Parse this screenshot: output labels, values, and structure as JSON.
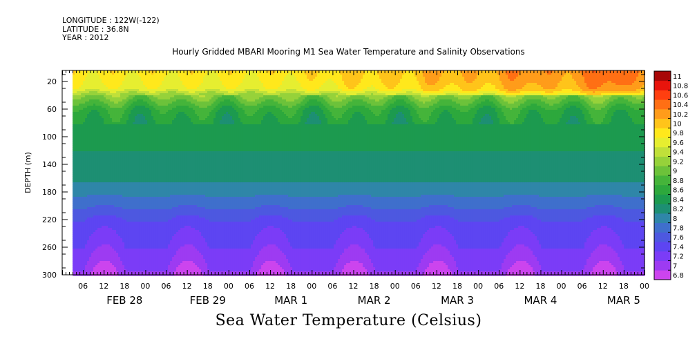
{
  "header": {
    "longitude": "LONGITUDE : 122W(-122)",
    "latitude": "LATITUDE : 36.8N",
    "year": "YEAR : 2012",
    "title": "Hourly Gridded MBARI Mooring M1 Sea Water Temperature and Salinity Observations"
  },
  "footer": {
    "variable_title": "Sea Water Temperature (Celsius)"
  },
  "chart_data": {
    "type": "heatmap",
    "title": "Hourly Gridded MBARI Mooring M1 Sea Water Temperature and Salinity Observations",
    "xlabel": "",
    "ylabel": "DEPTH (m)",
    "colorbar_label": "Sea Water Temperature (Celsius)",
    "x_hours_range": [
      0,
      168
    ],
    "x_tick_labels": [
      "06",
      "12",
      "18",
      "00",
      "06",
      "12",
      "18",
      "00",
      "06",
      "12",
      "18",
      "00",
      "06",
      "12",
      "18",
      "00",
      "06",
      "12",
      "18",
      "00",
      "06",
      "12",
      "18",
      "00",
      "06",
      "12",
      "18",
      "00"
    ],
    "day_labels": [
      "FEB 28",
      "FEB 29",
      "MAR  1",
      "MAR  2",
      "MAR  3",
      "MAR  4",
      "MAR  5"
    ],
    "data_start_hour": 3,
    "y_ticks": [
      20,
      60,
      100,
      140,
      180,
      220,
      260,
      300
    ],
    "ylim": [
      300,
      4
    ],
    "colorbar_levels": [
      6.8,
      7,
      7.2,
      7.4,
      7.6,
      7.8,
      8,
      8.2,
      8.4,
      8.6,
      8.8,
      9,
      9.2,
      9.4,
      9.6,
      9.8,
      10,
      10.2,
      10.4,
      10.6,
      10.8,
      11
    ],
    "colorbar_colors": [
      "#cc44ee",
      "#9d3bf2",
      "#7b3cf7",
      "#5d45f2",
      "#4d58e0",
      "#3f6fcc",
      "#2f86a8",
      "#1d8f73",
      "#1c9a4f",
      "#2da83c",
      "#45b43a",
      "#6cc23a",
      "#96d23a",
      "#c0e03a",
      "#e6ee30",
      "#ffe81c",
      "#ffc41a",
      "#ff9c1a",
      "#ff6f14",
      "#ff3f10",
      "#e8140c",
      "#a80808"
    ],
    "depth_profile": {
      "depths": [
        4,
        20,
        30,
        40,
        60,
        80,
        100,
        140,
        160,
        180,
        200,
        220,
        260,
        300
      ],
      "temperatures": [
        9.9,
        9.8,
        9.7,
        9.2,
        8.7,
        8.55,
        8.45,
        8.35,
        8.25,
        8.05,
        7.85,
        7.6,
        7.4,
        7.15
      ]
    },
    "notable": {
      "warmest_surface": "MAR  5 ~11",
      "coldest_bottom": "~6.8"
    }
  }
}
